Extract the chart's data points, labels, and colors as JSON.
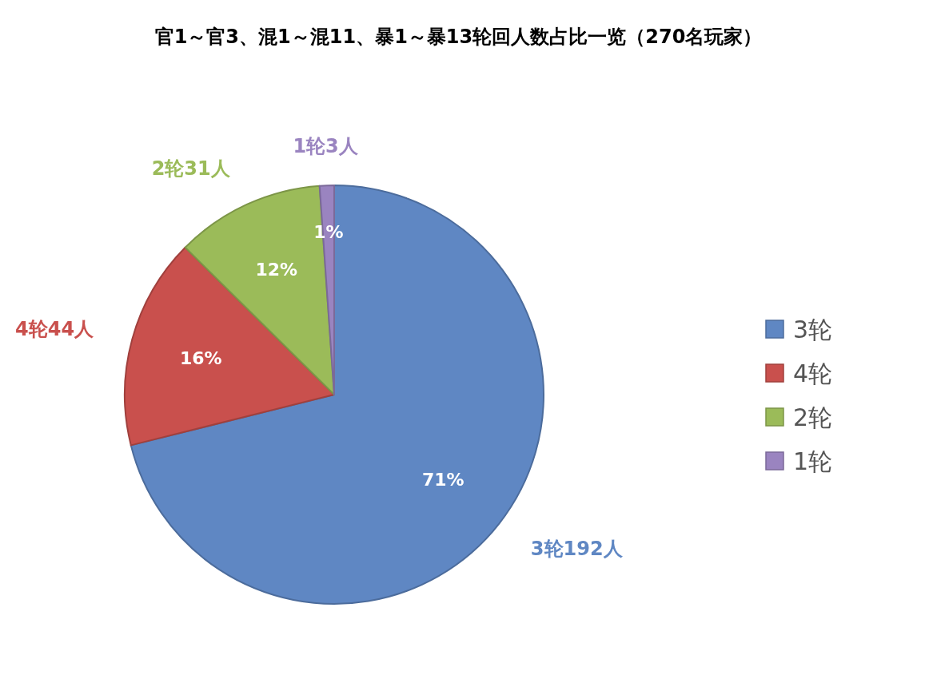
{
  "chart_data": {
    "type": "pie",
    "title": "官1～官3、混1～混11、暴1～暴13轮回人数占比一览（270名玩家）",
    "categories": [
      "3轮",
      "4轮",
      "2轮",
      "1轮"
    ],
    "values": [
      192,
      44,
      31,
      3
    ],
    "colors": [
      "#5f87c3",
      "#c9504d",
      "#9bbb59",
      "#9a84c0"
    ],
    "value_labels": [
      "3轮192人",
      "4轮44人",
      "2轮31人",
      "1轮3人"
    ],
    "annotations": [
      {
        "text": "71%",
        "x": "3轮"
      },
      {
        "text": "16%",
        "x": "4轮"
      },
      {
        "text": "12%",
        "x": "2轮"
      },
      {
        "text": "1%",
        "x": "1轮"
      }
    ],
    "legend": "right"
  }
}
